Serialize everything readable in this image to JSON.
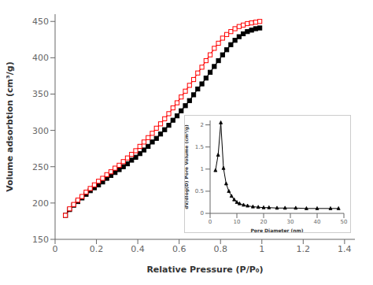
{
  "chart_data": [
    {
      "type": "line",
      "xlabel": "Relative Pressure (P/P₀)",
      "ylabel": "Volume adsorbtion (cm³/g)",
      "xlim": [
        0.0,
        1.45
      ],
      "ylim": [
        150,
        460
      ],
      "xticks": [
        0.0,
        0.2,
        0.4,
        0.6,
        0.8,
        1.0,
        1.2,
        1.4
      ],
      "yticks": [
        150,
        200,
        250,
        300,
        350,
        400,
        450
      ],
      "grid": false,
      "x": [
        0.05,
        0.07,
        0.09,
        0.11,
        0.13,
        0.15,
        0.17,
        0.19,
        0.21,
        0.23,
        0.25,
        0.27,
        0.29,
        0.31,
        0.33,
        0.35,
        0.37,
        0.39,
        0.41,
        0.43,
        0.45,
        0.47,
        0.49,
        0.51,
        0.53,
        0.55,
        0.57,
        0.59,
        0.61,
        0.63,
        0.65,
        0.67,
        0.69,
        0.71,
        0.73,
        0.75,
        0.77,
        0.79,
        0.81,
        0.83,
        0.85,
        0.87,
        0.89,
        0.91,
        0.93,
        0.95,
        0.97,
        0.99
      ],
      "series": [
        {
          "color": "black",
          "marker": "square",
          "values": [
            183,
            191,
            197,
            202,
            207,
            212,
            217,
            221,
            225,
            229,
            234,
            238,
            242,
            246,
            250,
            254,
            259,
            263,
            268,
            273,
            278,
            284,
            289,
            295,
            301,
            307,
            314,
            320,
            327,
            334,
            341,
            349,
            357,
            364,
            372,
            380,
            388,
            396,
            404,
            411,
            418,
            424,
            429,
            433,
            436,
            438,
            440,
            441
          ]
        },
        {
          "color": "red",
          "marker": "open_square",
          "values": [
            183,
            192,
            198,
            204,
            209,
            215,
            220,
            225,
            230,
            234,
            239,
            243,
            248,
            252,
            257,
            262,
            267,
            272,
            278,
            284,
            290,
            296,
            303,
            309,
            316,
            323,
            331,
            338,
            346,
            354,
            362,
            370,
            379,
            387,
            396,
            404,
            413,
            420,
            427,
            432,
            436,
            440,
            443,
            445,
            447,
            448,
            449,
            450
          ]
        }
      ]
    },
    {
      "type": "line",
      "xlabel": "Pore Diameter (nm)",
      "ylabel": "dV/dlog(D) Pore Volume (cm³/g)",
      "xlim": [
        0,
        50
      ],
      "ylim": [
        0.0,
        2.1
      ],
      "xticks": [
        0,
        10,
        20,
        30,
        40,
        50
      ],
      "yticks": [
        0.0,
        0.5,
        1.0,
        1.5,
        2.0
      ],
      "grid": false,
      "x": [
        2.0,
        3.0,
        4.0,
        5.0,
        6.0,
        7.0,
        8.0,
        9.0,
        10.0,
        11.0,
        12.5,
        14.0,
        16.0,
        18.0,
        20.0,
        22.0,
        25.0,
        28.0,
        32.0,
        36.0,
        40.0,
        45.0,
        48.0
      ],
      "series": [
        {
          "color": "black",
          "marker": "triangle",
          "values": [
            0.97,
            1.32,
            2.05,
            1.02,
            0.67,
            0.5,
            0.39,
            0.31,
            0.25,
            0.22,
            0.19,
            0.17,
            0.15,
            0.14,
            0.13,
            0.13,
            0.12,
            0.12,
            0.12,
            0.11,
            0.11,
            0.11,
            0.11
          ]
        }
      ]
    }
  ]
}
